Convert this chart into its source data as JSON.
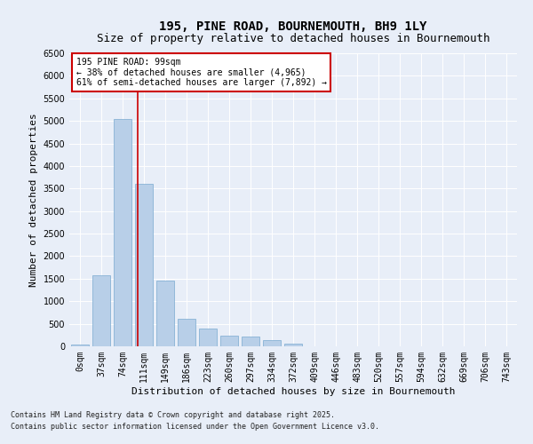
{
  "title": "195, PINE ROAD, BOURNEMOUTH, BH9 1LY",
  "subtitle": "Size of property relative to detached houses in Bournemouth",
  "xlabel": "Distribution of detached houses by size in Bournemouth",
  "ylabel": "Number of detached properties",
  "bar_labels": [
    "0sqm",
    "37sqm",
    "74sqm",
    "111sqm",
    "149sqm",
    "186sqm",
    "223sqm",
    "260sqm",
    "297sqm",
    "334sqm",
    "372sqm",
    "409sqm",
    "446sqm",
    "483sqm",
    "520sqm",
    "557sqm",
    "594sqm",
    "632sqm",
    "669sqm",
    "706sqm",
    "743sqm"
  ],
  "bar_values": [
    30,
    1580,
    5050,
    3600,
    1450,
    620,
    400,
    230,
    210,
    130,
    50,
    0,
    0,
    0,
    0,
    0,
    0,
    0,
    0,
    0,
    0
  ],
  "bar_color": "#b8cfe8",
  "bar_edge_color": "#7aaad0",
  "vline_x": 2.72,
  "vline_color": "#cc0000",
  "ylim": [
    0,
    6500
  ],
  "yticks": [
    0,
    500,
    1000,
    1500,
    2000,
    2500,
    3000,
    3500,
    4000,
    4500,
    5000,
    5500,
    6000,
    6500
  ],
  "annotation_text": "195 PINE ROAD: 99sqm\n← 38% of detached houses are smaller (4,965)\n61% of semi-detached houses are larger (7,892) →",
  "annotation_box_color": "#ffffff",
  "annotation_box_edge": "#cc0000",
  "footnote1": "Contains HM Land Registry data © Crown copyright and database right 2025.",
  "footnote2": "Contains public sector information licensed under the Open Government Licence v3.0.",
  "bg_color": "#e8eef8",
  "plot_bg_color": "#e8eef8",
  "title_fontsize": 10,
  "subtitle_fontsize": 9,
  "axis_label_fontsize": 8,
  "tick_fontsize": 7,
  "annot_fontsize": 7,
  "footnote_fontsize": 6
}
